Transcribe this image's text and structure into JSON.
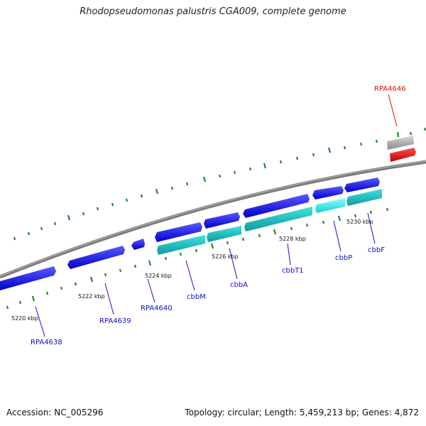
{
  "title": "Rhodopseudomonas palustris CGA009, complete genome",
  "footer": {
    "accession": "Accession: NC_005296",
    "summary": "Topology: circular; Length: 5,459,213 bp; Genes: 4,872"
  },
  "colors": {
    "forward_gene": "#1010e8",
    "reverse_gene": "#20c8c8",
    "highlight_gene": "#30ffff",
    "pseudo_gene": "#b4b4b4",
    "selected_gene": "#ee1010",
    "backbone": "#808080",
    "tick": "#1f8a1f",
    "gene_label": "#1010cc",
    "selected_label": "#dd1111"
  },
  "scale_labels": [
    "5220 kbp",
    "5222 kbp",
    "5224 kbp",
    "5226 kbp",
    "5228 kbp",
    "5230 kbp"
  ],
  "gene_labels": [
    "RPA4638",
    "RPA4639",
    "RPA4640",
    "cbbM",
    "cbbA",
    "cbbT1",
    "cbbP",
    "cbbF",
    "RPA4646"
  ]
}
